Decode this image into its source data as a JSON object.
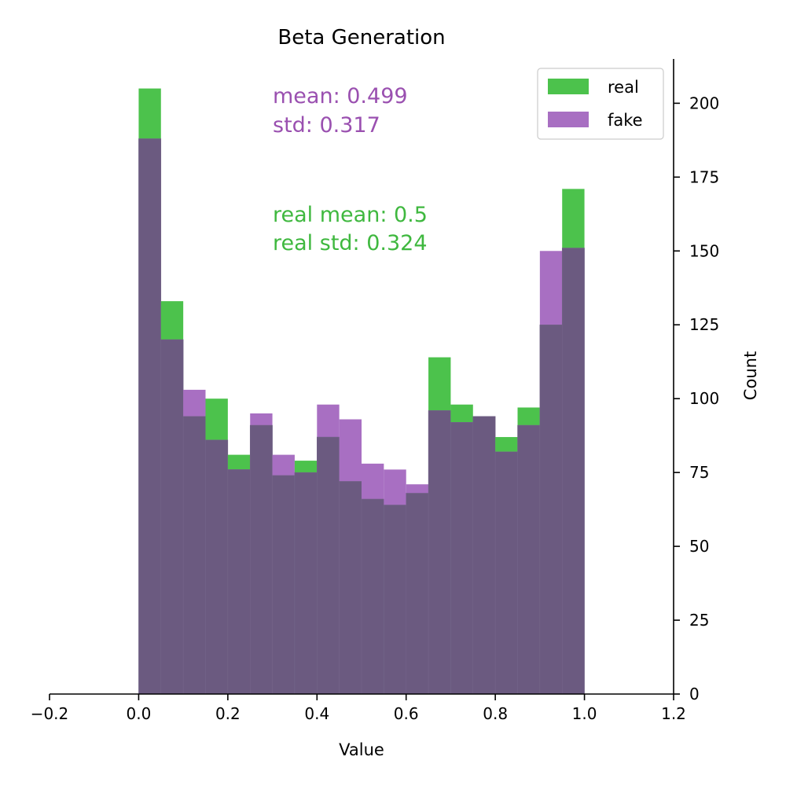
{
  "chart_data": {
    "type": "bar",
    "title": "Beta Generation",
    "xlabel": "Value",
    "ylabel": "Count",
    "xlim": [
      -0.2,
      1.2
    ],
    "ylim": [
      0,
      215
    ],
    "x_ticks": [
      -0.2,
      0.0,
      0.2,
      0.4,
      0.6,
      0.8,
      1.0,
      1.2
    ],
    "x_tick_labels": [
      "−0.2",
      "0.0",
      "0.2",
      "0.4",
      "0.6",
      "0.8",
      "1.0",
      "1.2"
    ],
    "y_ticks": [
      0,
      25,
      50,
      75,
      100,
      125,
      150,
      175,
      200
    ],
    "y_tick_labels": [
      "0",
      "25",
      "50",
      "75",
      "100",
      "125",
      "150",
      "175",
      "200"
    ],
    "y_axis_side": "right",
    "grid": false,
    "legend_position": "top-right",
    "bin_edges": [
      0.0,
      0.05,
      0.1,
      0.15,
      0.2,
      0.25,
      0.3,
      0.35,
      0.4,
      0.45,
      0.5,
      0.55,
      0.6,
      0.65,
      0.7,
      0.75,
      0.8,
      0.85,
      0.9,
      0.95,
      1.0
    ],
    "series": [
      {
        "name": "real",
        "color": "#4cc24c",
        "values": [
          205,
          133,
          94,
          100,
          81,
          91,
          74,
          79,
          87,
          72,
          66,
          64,
          68,
          114,
          98,
          94,
          87,
          97,
          125,
          171
        ]
      },
      {
        "name": "fake",
        "color": "#a86fc2",
        "values": [
          188,
          120,
          103,
          86,
          76,
          95,
          81,
          75,
          98,
          93,
          78,
          76,
          71,
          96,
          92,
          94,
          82,
          91,
          150,
          151
        ]
      }
    ],
    "overlap_color": "#6b5a80",
    "annotations": {
      "fake_stats": {
        "mean": "mean: 0.499",
        "std": "std: 0.317",
        "color": "#9a50b0"
      },
      "real_stats": {
        "mean": "real mean: 0.5",
        "std": "real std: 0.324",
        "color": "#3fb83f"
      }
    }
  }
}
